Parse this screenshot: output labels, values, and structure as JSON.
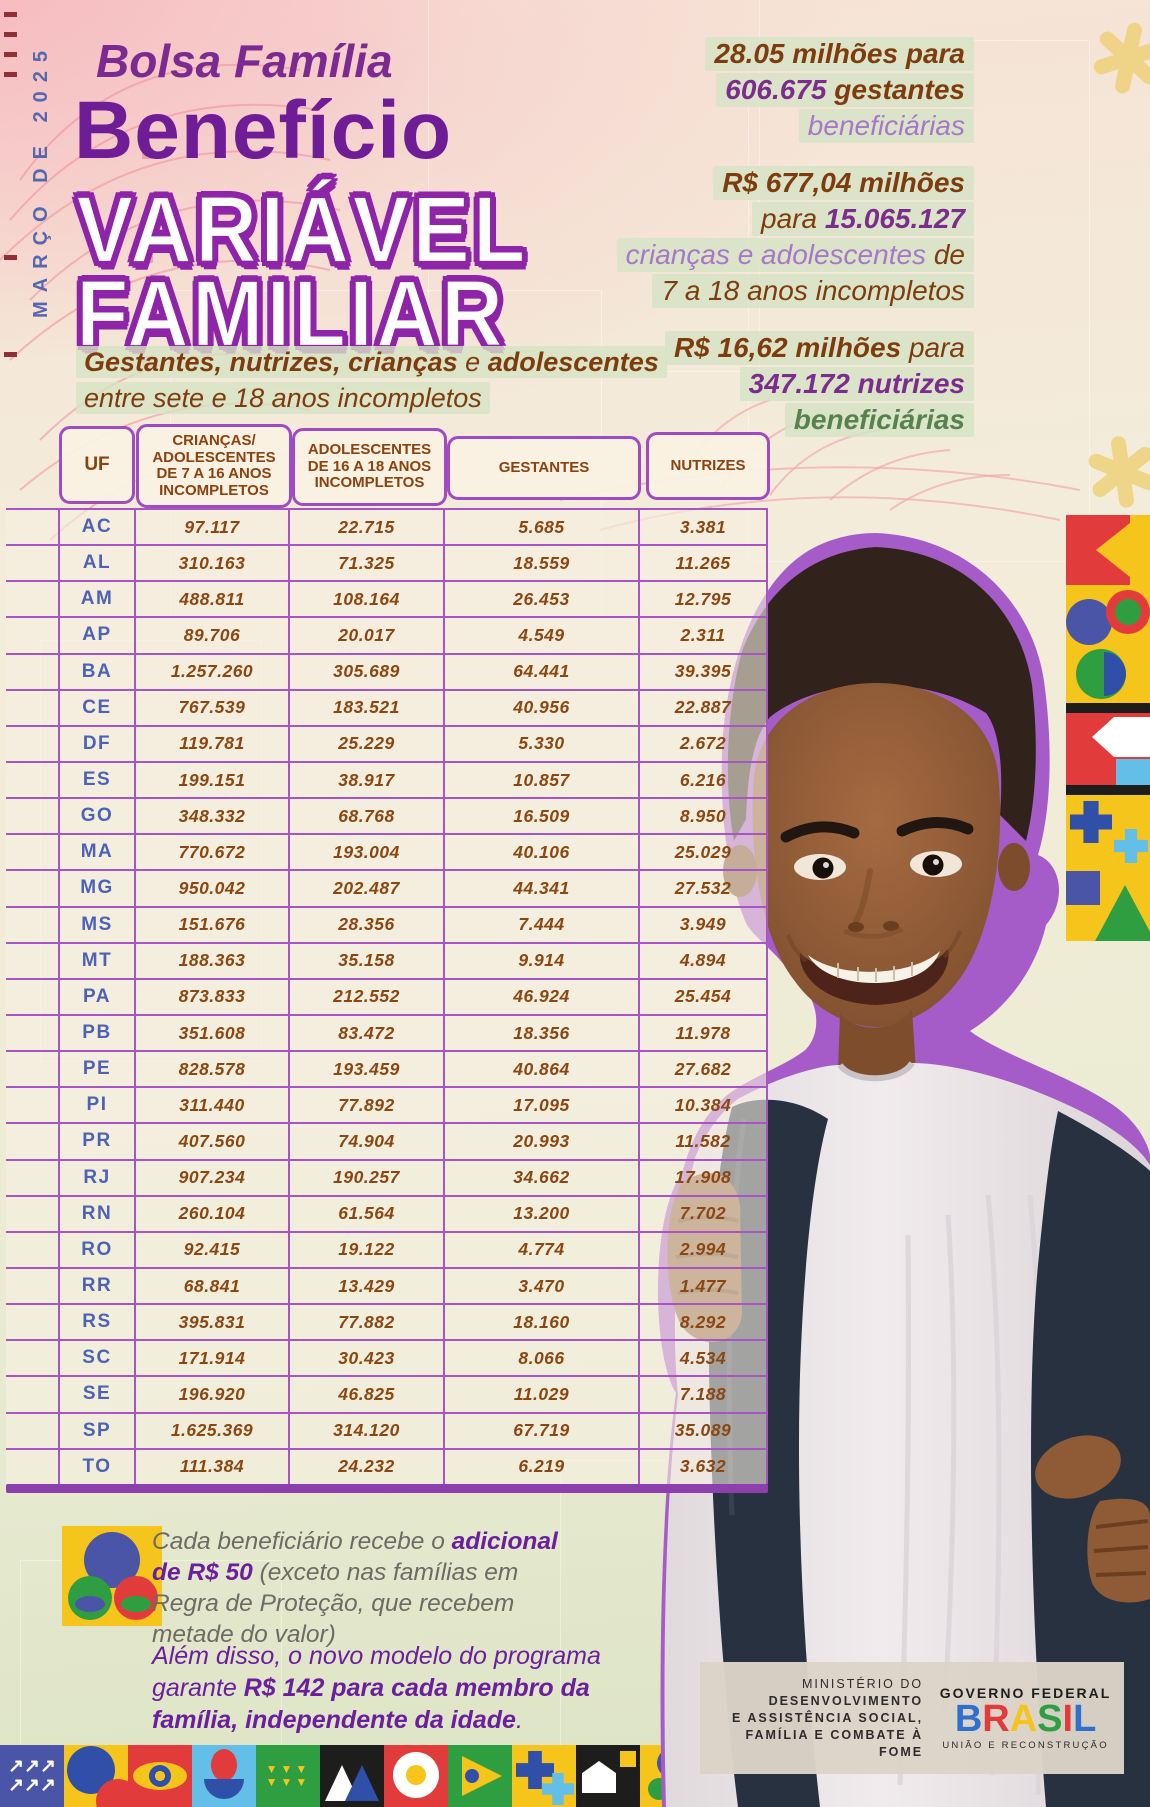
{
  "page": {
    "date_label": "MARÇO DE 2025"
  },
  "header": {
    "kicker": "Bolsa Família",
    "title": "Benefício",
    "outline_lines": [
      "VARIÁVEL",
      "FAMILIAR"
    ],
    "subtitle_lines": [
      [
        {
          "t": "Gestantes, nutrizes, crianças",
          "c": "stb"
        },
        {
          "t": " e ",
          "c": "str"
        },
        {
          "t": "adolescentes",
          "c": "stb"
        }
      ],
      [
        {
          "t": "entre sete e 18 anos incompletos",
          "c": "str"
        }
      ]
    ]
  },
  "stats": {
    "blocks": [
      {
        "lines": [
          [
            {
              "t": "28.05 milhões para",
              "c": "sb"
            }
          ],
          [
            {
              "t": "606.675 ",
              "c": "sp"
            },
            {
              "t": "gestantes",
              "c": "sb"
            }
          ],
          [
            {
              "t": "beneficiárias",
              "c": "sl"
            }
          ]
        ]
      },
      {
        "lines": [
          [
            {
              "t": "R$ 677,04 milhões",
              "c": "sb"
            }
          ],
          [
            {
              "t": "para ",
              "c": "sr"
            },
            {
              "t": "15.065.127",
              "c": "sp"
            }
          ],
          [
            {
              "t": "crianças e adolescentes ",
              "c": "sl"
            },
            {
              "t": "de",
              "c": "sr"
            }
          ],
          [
            {
              "t": "7 a 18 anos incompletos",
              "c": "sr"
            }
          ]
        ]
      },
      {
        "lines": [
          [
            {
              "t": "R$ 16,62 milhões ",
              "c": "sb"
            },
            {
              "t": "para",
              "c": "sr"
            }
          ],
          [
            {
              "t": "347.172 nutrizes",
              "c": "sp"
            }
          ],
          [
            {
              "t": "beneficiárias",
              "c": "sg"
            }
          ]
        ]
      }
    ]
  },
  "table": {
    "headers": [
      "UF",
      "CRIANÇAS/\nADOLESCENTES\nDE 7 A 16 ANOS\nINCOMPLETOS",
      "ADOLESCENTES\nDE 16 A 18 ANOS\nINCOMPLETOS",
      "GESTANTES",
      "NUTRIZES"
    ],
    "rows": [
      [
        "AC",
        "97.117",
        "22.715",
        "5.685",
        "3.381"
      ],
      [
        "AL",
        "310.163",
        "71.325",
        "18.559",
        "11.265"
      ],
      [
        "AM",
        "488.811",
        "108.164",
        "26.453",
        "12.795"
      ],
      [
        "AP",
        "89.706",
        "20.017",
        "4.549",
        "2.311"
      ],
      [
        "BA",
        "1.257.260",
        "305.689",
        "64.441",
        "39.395"
      ],
      [
        "CE",
        "767.539",
        "183.521",
        "40.956",
        "22.887"
      ],
      [
        "DF",
        "119.781",
        "25.229",
        "5.330",
        "2.672"
      ],
      [
        "ES",
        "199.151",
        "38.917",
        "10.857",
        "6.216"
      ],
      [
        "GO",
        "348.332",
        "68.768",
        "16.509",
        "8.950"
      ],
      [
        "MA",
        "770.672",
        "193.004",
        "40.106",
        "25.029"
      ],
      [
        "MG",
        "950.042",
        "202.487",
        "44.341",
        "27.532"
      ],
      [
        "MS",
        "151.676",
        "28.356",
        "7.444",
        "3.949"
      ],
      [
        "MT",
        "188.363",
        "35.158",
        "9.914",
        "4.894"
      ],
      [
        "PA",
        "873.833",
        "212.552",
        "46.924",
        "25.454"
      ],
      [
        "PB",
        "351.608",
        "83.472",
        "18.356",
        "11.978"
      ],
      [
        "PE",
        "828.578",
        "193.459",
        "40.864",
        "27.682"
      ],
      [
        "PI",
        "311.440",
        "77.892",
        "17.095",
        "10.384"
      ],
      [
        "PR",
        "407.560",
        "74.904",
        "20.993",
        "11.582"
      ],
      [
        "RJ",
        "907.234",
        "190.257",
        "34.662",
        "17.908"
      ],
      [
        "RN",
        "260.104",
        "61.564",
        "13.200",
        "7.702"
      ],
      [
        "RO",
        "92.415",
        "19.122",
        "4.774",
        "2.994"
      ],
      [
        "RR",
        "68.841",
        "13.429",
        "3.470",
        "1.477"
      ],
      [
        "RS",
        "395.831",
        "77.882",
        "18.160",
        "8.292"
      ],
      [
        "SC",
        "171.914",
        "30.423",
        "8.066",
        "4.534"
      ],
      [
        "SE",
        "196.920",
        "46.825",
        "11.029",
        "7.188"
      ],
      [
        "SP",
        "1.625.369",
        "314.120",
        "67.719",
        "35.089"
      ],
      [
        "TO",
        "111.384",
        "24.232",
        "6.219",
        "3.632"
      ]
    ]
  },
  "notes": [
    {
      "segments": [
        {
          "t": "Cada beneficiário recebe o ",
          "c": "ng"
        },
        {
          "t": "adicional de R$ 50",
          "c": "npb"
        },
        {
          "t": " (exceto nas famílias em Regra de Proteção, que recebem metade do valor)",
          "c": "ng"
        }
      ]
    },
    {
      "segments": [
        {
          "t": "Além disso, o novo modelo do programa garante ",
          "c": "np"
        },
        {
          "t": "R$ 142 para cada membro da família, independente da idade",
          "c": "npb2"
        },
        {
          "t": ".",
          "c": "np"
        }
      ]
    }
  ],
  "gov": {
    "ministry_lines": [
      "MINISTÉRIO DO",
      "DESENVOLVIMENTO",
      "E ASSISTÊNCIA SOCIAL,",
      "FAMÍLIA E COMBATE À FOME"
    ],
    "federal_label": "GOVERNO FEDERAL",
    "brand": "BRASIL",
    "brand_colors": [
      "#2f6fce",
      "#e23b3b",
      "#f5c41c",
      "#2f9e41",
      "#e23b3b",
      "#2f6fce"
    ],
    "tagline": "UNIÃO E RECONSTRUÇÃO"
  },
  "footer_strip": {
    "tiles": [
      "arrows",
      "circles",
      "eye",
      "flower",
      "wheat",
      "mountains",
      "egg",
      "flag",
      "cross",
      "house",
      "bolsa"
    ]
  },
  "decorations": {
    "arrows_glyph": "↗↗↗\n↗↗↗",
    "wheat_glyph": "▼▼▼\n▼▼▼"
  },
  "colors": {
    "accent_purple": "#7b2d8e",
    "title_purple": "#6f1d96",
    "outline_purple": "#8e24a8",
    "accent_brown": "#7e3c0e",
    "table_border": "#a855c4",
    "uf_blue": "#4e62b4",
    "highlight_green": "#d6e3c4",
    "date_blue": "#5468b0",
    "photo_outline": "#a65cc8"
  }
}
